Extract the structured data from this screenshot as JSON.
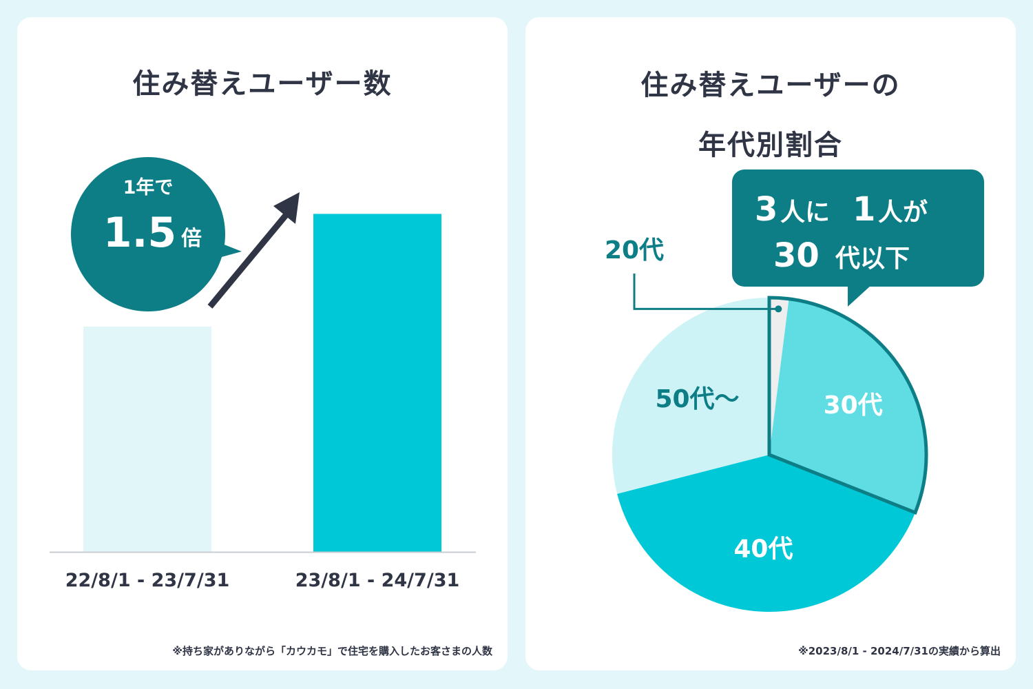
{
  "colors": {
    "background": "#e3f6f9",
    "card": "#ffffff",
    "text": "#2f3545",
    "accent_dark": "#0e7e86",
    "bar_prev": "#e0f6f9",
    "bar_curr": "#00c8d7",
    "pie_20s": "#eeeeee",
    "pie_30s": "#5fdde3",
    "pie_40s": "#00c8d7",
    "pie_50s": "#cef3f6"
  },
  "left_panel": {
    "title": "住み替えユーザー数",
    "badge": {
      "line1": "1年で",
      "value": "1.5",
      "unit": "倍"
    },
    "footnote": "※持ち家がありながら「カウカモ」で住宅を購入したお客さまの人数"
  },
  "right_panel": {
    "title_line1": "住み替えユーザーの",
    "title_line2": "年代別割合",
    "callout": {
      "line1": [
        "3",
        "人に",
        "1",
        "人が"
      ],
      "line2": [
        "30",
        "代以下"
      ]
    },
    "footnote": "※2023/8/1 - 2024/7/31の実績から算出"
  },
  "chart_data": [
    {
      "type": "bar",
      "title": "住み替えユーザー数",
      "categories": [
        "22/8/1 - 23/7/31",
        "23/8/1 - 24/7/31"
      ],
      "values": [
        1,
        1.5
      ],
      "ylim": [
        0,
        1.7
      ],
      "grid": false
    },
    {
      "type": "pie",
      "title": "住み替えユーザーの年代別割合",
      "categories": [
        "20代",
        "30代",
        "40代",
        "50代～"
      ],
      "values": [
        2,
        29,
        40,
        29
      ],
      "grid": false
    }
  ]
}
